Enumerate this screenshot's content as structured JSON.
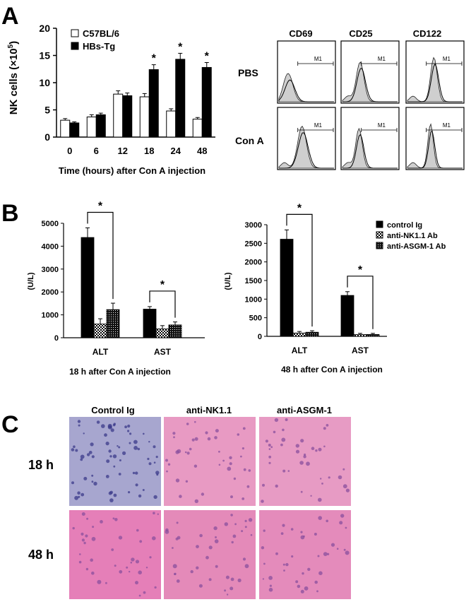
{
  "panel_labels": [
    "A",
    "B",
    "C"
  ],
  "panelA": {
    "ylabel": "NK cells (×10",
    "ylabel_sup": "5",
    "ylabel_close": ")",
    "xlabel": "Time (hours) after Con A injection",
    "legend": [
      "C57BL/6",
      "HBs-Tg"
    ],
    "sig": "*"
  },
  "flow": {
    "columns": [
      "CD69",
      "CD25",
      "CD122"
    ],
    "rows": [
      "PBS",
      "Con A"
    ],
    "gate_label": "M1"
  },
  "panelB": {
    "ylabel": "(U/L)",
    "left_caption": "18 h after Con A injection",
    "right_caption": "48 h after Con A  injection",
    "legend": [
      "control Ig",
      "anti-NK1.1 Ab",
      "anti-ASGM-1 Ab"
    ],
    "sig": "*"
  },
  "panelC": {
    "columns": [
      "Control Ig",
      "anti-NK1.1",
      "anti-ASGM-1"
    ],
    "rows": [
      "18 h",
      "48 h"
    ]
  },
  "chart_data": [
    {
      "type": "bar",
      "categories": [
        "0",
        "6",
        "12",
        "18",
        "24",
        "48"
      ],
      "series": [
        {
          "name": "C57BL/6",
          "values": [
            3.1,
            3.7,
            7.9,
            7.4,
            4.8,
            3.3
          ],
          "errors": [
            0.3,
            0.4,
            0.6,
            0.6,
            0.4,
            0.3
          ],
          "color": "#ffffff"
        },
        {
          "name": "HBs-Tg",
          "values": [
            2.6,
            4.1,
            7.6,
            12.4,
            14.3,
            12.8
          ],
          "errors": [
            0.2,
            0.3,
            0.5,
            0.9,
            1.1,
            0.9
          ],
          "color": "#000000"
        }
      ],
      "significant": [
        false,
        false,
        false,
        true,
        true,
        true
      ],
      "ylabel": "NK cells (×10^5)",
      "xlabel": "Time (hours) after Con A injection",
      "ylim": [
        0,
        20
      ],
      "yticks": [
        0,
        5,
        10,
        15,
        20
      ],
      "legend": "top-left"
    },
    {
      "type": "bar",
      "categories": [
        "ALT",
        "AST"
      ],
      "series": [
        {
          "name": "control Ig",
          "values": [
            4380,
            1250
          ],
          "errors": [
            420,
            110
          ]
        },
        {
          "name": "anti-NK1.1 Ab",
          "values": [
            600,
            390
          ],
          "errors": [
            230,
            140
          ]
        },
        {
          "name": "anti-ASGM-1 Ab",
          "values": [
            1230,
            560
          ],
          "errors": [
            280,
            130
          ]
        }
      ],
      "significance_brackets": [
        "ALT",
        "AST"
      ],
      "ylabel": "(U/L)",
      "caption": "18 h after Con A injection",
      "ylim": [
        0,
        5000
      ],
      "yticks": [
        0,
        1000,
        2000,
        3000,
        4000,
        5000
      ]
    },
    {
      "type": "bar",
      "categories": [
        "ALT",
        "AST"
      ],
      "series": [
        {
          "name": "control Ig",
          "values": [
            2610,
            1100
          ],
          "errors": [
            250,
            100
          ]
        },
        {
          "name": "anti-NK1.1 Ab",
          "values": [
            90,
            50
          ],
          "errors": [
            40,
            30
          ]
        },
        {
          "name": "anti-ASGM-1 Ab",
          "values": [
            110,
            50
          ],
          "errors": [
            40,
            30
          ]
        }
      ],
      "significance_brackets": [
        "ALT",
        "AST"
      ],
      "ylabel": "(U/L)",
      "caption": "48 h after Con A  injection",
      "ylim": [
        0,
        3000
      ],
      "yticks": [
        0,
        500,
        1000,
        1500,
        2000,
        2500,
        3000
      ],
      "legend": "top-right"
    }
  ]
}
